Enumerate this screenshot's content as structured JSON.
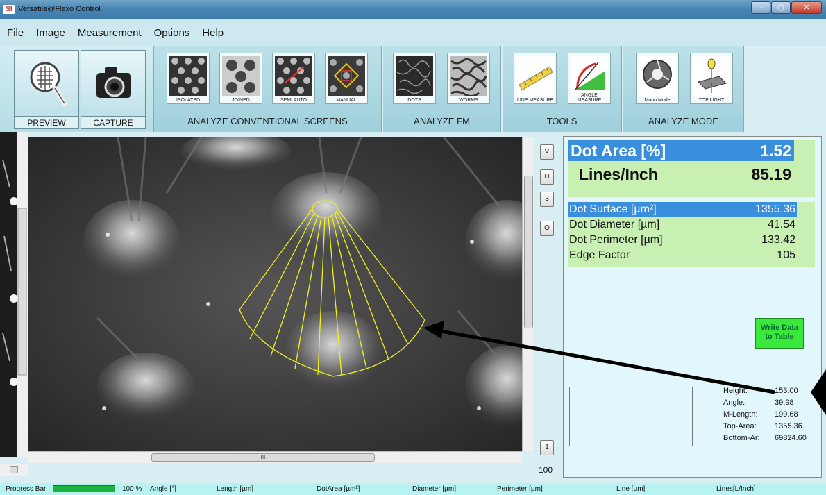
{
  "window": {
    "title": "Versatile@Flexo Control",
    "logo_text": "SI",
    "buttons": [
      "–",
      "▢",
      "✕"
    ]
  },
  "menu": [
    "File",
    "Image",
    "Measurement",
    "Options",
    "Help"
  ],
  "ribbon": {
    "preview": "PREVIEW",
    "capture": "CAPTURE",
    "conventional": {
      "label": "ANALYZE CONVENTIONAL SCREENS",
      "buttons": [
        "ISOLATED",
        "JOINED",
        "SEMI AUTO",
        "MANUAL"
      ]
    },
    "fm": {
      "label": "ANALYZE FM",
      "buttons": [
        "DOTS",
        "WORMS"
      ]
    },
    "tools": {
      "label": "TOOLS",
      "buttons": [
        "LINE MEASURE",
        "ANGLE MEASURE"
      ]
    },
    "mode": {
      "label": "ANALYZE MODE",
      "buttons": [
        "Mono Mode",
        "TOP LIGHT"
      ]
    }
  },
  "side_controls": {
    "v": "V",
    "h": "H",
    "three": "3",
    "o": "O",
    "one": "1",
    "zoom": "100"
  },
  "hscroll_grip": "III",
  "results": {
    "dot_area_label": "Dot Area [%]",
    "dot_area_value": "1.52",
    "lpi_label": "Lines/Inch",
    "lpi_value": "85.19",
    "rows": [
      {
        "label": "Dot Surface [µm²]",
        "value": "1355.36"
      },
      {
        "label": "Dot Diameter [µm]",
        "value": "41.54"
      },
      {
        "label": "Dot Perimeter [µm]",
        "value": "133.42"
      },
      {
        "label": "Edge Factor",
        "value": "105"
      }
    ],
    "write_button_line1": "Write Data",
    "write_button_line2": "to Table"
  },
  "geometry": [
    {
      "label": "Height:",
      "value": "153.00"
    },
    {
      "label": "Angle:",
      "value": "39.98"
    },
    {
      "label": "M-Length:",
      "value": "199.68"
    },
    {
      "label": "Top-Area:",
      "value": "1355.36"
    },
    {
      "label": "Bottom-Ar:",
      "value": "69824.60"
    }
  ],
  "statusbar": {
    "progress_label": "Progress Bar",
    "progress_value": 1.0,
    "progress_text": "100 %",
    "fields": [
      "Angle [°]",
      "Length [µm]",
      "DotArea [µm²]",
      "Diameter [µm]",
      "Perimeter [µm]",
      "Line [µm]",
      "Lines[L/Inch]"
    ]
  },
  "colors": {
    "highlight": "#3a8fdc",
    "result_bg": "#c7f0b2",
    "write_button": "#39e83a",
    "overlay": "#f2f21a"
  }
}
